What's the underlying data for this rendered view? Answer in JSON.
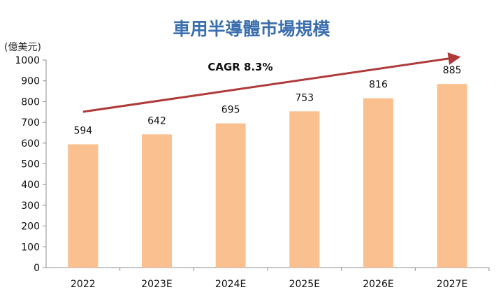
{
  "chart_data": {
    "type": "bar",
    "title": "車用半導體市場規模",
    "ylabel": "(億美元)",
    "xlabel": "",
    "categories": [
      "2022",
      "2023E",
      "2024E",
      "2025E",
      "2026E",
      "2027E"
    ],
    "values": [
      594,
      642,
      695,
      753,
      816,
      885
    ],
    "ylim": [
      0,
      1000
    ],
    "yticks": [
      "0",
      "100",
      "200",
      "300",
      "400",
      "500",
      "600",
      "700",
      "800",
      "900",
      "1000"
    ],
    "grid": false,
    "annotation": {
      "text": "CAGR 8.3%",
      "arrow_from_category": "2022",
      "arrow_to_category": "2027E"
    },
    "colors": {
      "bar": "#fac090",
      "arrow": "#b03a3a",
      "title": "#3b6fae"
    }
  }
}
